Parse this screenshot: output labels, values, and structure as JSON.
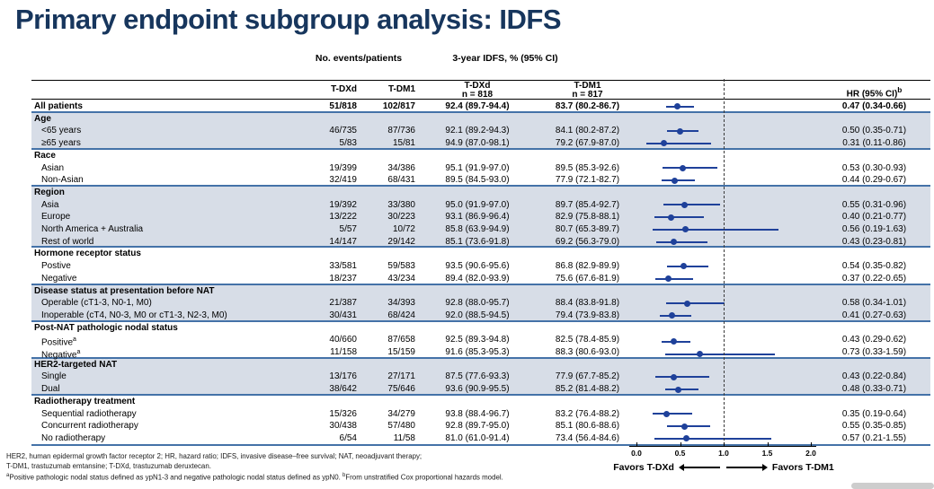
{
  "title": "Primary endpoint subgroup analysis: IDFS",
  "chart_data": {
    "type": "table",
    "subtype": "forest-plot-subgroup-table",
    "group_headers": {
      "events": "No. events/patients",
      "idfs": "3-year IDFS, % (95% CI)"
    },
    "columns": {
      "tdxd_events": "T-DXd",
      "tdm1_events": "T-DM1",
      "tdxd_idfs": [
        "T-DXd",
        "n = 818"
      ],
      "tdm1_idfs": [
        "T-DM1",
        "n = 817"
      ],
      "hr": "HR (95% CI)",
      "hr_sup": "b"
    },
    "forest": {
      "xlim": [
        0,
        2
      ],
      "axis_ticks": [
        0.0,
        0.5,
        1.0,
        1.5,
        2.0
      ],
      "reference_line": 1.0,
      "favors_left": "Favors T-DXd",
      "favors_right": "Favors T-DM1"
    },
    "sections": [
      {
        "header": null,
        "shaded": false,
        "rows": [
          {
            "label": "All patients",
            "bold": true,
            "events_tdxd": "51/818",
            "events_tdm1": "102/817",
            "idfs_tdxd": "92.4 (89.7-94.4)",
            "idfs_tdm1": "83.7 (80.2-86.7)",
            "hr_text": "0.47 (0.34-0.66)",
            "hr": 0.47,
            "lo": 0.34,
            "hi": 0.66
          }
        ]
      },
      {
        "header": "Age",
        "shaded": true,
        "rows": [
          {
            "label": "<65 years",
            "events_tdxd": "46/735",
            "events_tdm1": "87/736",
            "idfs_tdxd": "92.1 (89.2-94.3)",
            "idfs_tdm1": "84.1 (80.2-87.2)",
            "hr_text": "0.50 (0.35-0.71)",
            "hr": 0.5,
            "lo": 0.35,
            "hi": 0.71
          },
          {
            "label": "≥65 years",
            "events_tdxd": "5/83",
            "events_tdm1": "15/81",
            "idfs_tdxd": "94.9 (87.0-98.1)",
            "idfs_tdm1": "79.2 (67.9-87.0)",
            "hr_text": "0.31 (0.11-0.86)",
            "hr": 0.31,
            "lo": 0.11,
            "hi": 0.86
          }
        ]
      },
      {
        "header": "Race",
        "shaded": false,
        "rows": [
          {
            "label": "Asian",
            "events_tdxd": "19/399",
            "events_tdm1": "34/386",
            "idfs_tdxd": "95.1 (91.9-97.0)",
            "idfs_tdm1": "89.5 (85.3-92.6)",
            "hr_text": "0.53 (0.30-0.93)",
            "hr": 0.53,
            "lo": 0.3,
            "hi": 0.93
          },
          {
            "label": "Non-Asian",
            "events_tdxd": "32/419",
            "events_tdm1": "68/431",
            "idfs_tdxd": "89.5 (84.5-93.0)",
            "idfs_tdm1": "77.9 (72.1-82.7)",
            "hr_text": "0.44 (0.29-0.67)",
            "hr": 0.44,
            "lo": 0.29,
            "hi": 0.67
          }
        ]
      },
      {
        "header": "Region",
        "shaded": true,
        "rows": [
          {
            "label": "Asia",
            "events_tdxd": "19/392",
            "events_tdm1": "33/380",
            "idfs_tdxd": "95.0 (91.9-97.0)",
            "idfs_tdm1": "89.7 (85.4-92.7)",
            "hr_text": "0.55 (0.31-0.96)",
            "hr": 0.55,
            "lo": 0.31,
            "hi": 0.96
          },
          {
            "label": "Europe",
            "events_tdxd": "13/222",
            "events_tdm1": "30/223",
            "idfs_tdxd": "93.1 (86.9-96.4)",
            "idfs_tdm1": "82.9 (75.8-88.1)",
            "hr_text": "0.40 (0.21-0.77)",
            "hr": 0.4,
            "lo": 0.21,
            "hi": 0.77
          },
          {
            "label": "North America + Australia",
            "events_tdxd": "5/57",
            "events_tdm1": "10/72",
            "idfs_tdxd": "85.8 (63.9-94.9)",
            "idfs_tdm1": "80.7 (65.3-89.7)",
            "hr_text": "0.56 (0.19-1.63)",
            "hr": 0.56,
            "lo": 0.19,
            "hi": 1.63
          },
          {
            "label": "Rest of world",
            "events_tdxd": "14/147",
            "events_tdm1": "29/142",
            "idfs_tdxd": "85.1 (73.6-91.8)",
            "idfs_tdm1": "69.2 (56.3-79.0)",
            "hr_text": "0.43 (0.23-0.81)",
            "hr": 0.43,
            "lo": 0.23,
            "hi": 0.81
          }
        ]
      },
      {
        "header": "Hormone receptor status",
        "shaded": false,
        "rows": [
          {
            "label": "Postive",
            "events_tdxd": "33/581",
            "events_tdm1": "59/583",
            "idfs_tdxd": "93.5 (90.6-95.6)",
            "idfs_tdm1": "86.8 (82.9-89.9)",
            "hr_text": "0.54 (0.35-0.82)",
            "hr": 0.54,
            "lo": 0.35,
            "hi": 0.82
          },
          {
            "label": "Negative",
            "events_tdxd": "18/237",
            "events_tdm1": "43/234",
            "idfs_tdxd": "89.4 (82.0-93.9)",
            "idfs_tdm1": "75.6 (67.6-81.9)",
            "hr_text": "0.37 (0.22-0.65)",
            "hr": 0.37,
            "lo": 0.22,
            "hi": 0.65
          }
        ]
      },
      {
        "header": "Disease status at presentation before NAT",
        "shaded": true,
        "rows": [
          {
            "label": "Operable (cT1-3, N0-1, M0)",
            "events_tdxd": "21/387",
            "events_tdm1": "34/393",
            "idfs_tdxd": "92.8 (88.0-95.7)",
            "idfs_tdm1": "88.4 (83.8-91.8)",
            "hr_text": "0.58 (0.34-1.01)",
            "hr": 0.58,
            "lo": 0.34,
            "hi": 1.01
          },
          {
            "label": "Inoperable (cT4, N0-3, M0 or cT1-3, N2-3, M0)",
            "events_tdxd": "30/431",
            "events_tdm1": "68/424",
            "idfs_tdxd": "92.0 (88.5-94.5)",
            "idfs_tdm1": "79.4 (73.9-83.8)",
            "hr_text": "0.41 (0.27-0.63)",
            "hr": 0.41,
            "lo": 0.27,
            "hi": 0.63
          }
        ]
      },
      {
        "header": "Post-NAT pathologic nodal status",
        "shaded": false,
        "rows": [
          {
            "label": "Positive",
            "sup": "a",
            "events_tdxd": "40/660",
            "events_tdm1": "87/658",
            "idfs_tdxd": "92.5 (89.3-94.8)",
            "idfs_tdm1": "82.5 (78.4-85.9)",
            "hr_text": "0.43 (0.29-0.62)",
            "hr": 0.43,
            "lo": 0.29,
            "hi": 0.62
          },
          {
            "label": "Negative",
            "sup": "a",
            "events_tdxd": "11/158",
            "events_tdm1": "15/159",
            "idfs_tdxd": "91.6 (85.3-95.3)",
            "idfs_tdm1": "88.3 (80.6-93.0)",
            "hr_text": "0.73 (0.33-1.59)",
            "hr": 0.73,
            "lo": 0.33,
            "hi": 1.59
          }
        ]
      },
      {
        "header": "HER2-targeted NAT",
        "shaded": true,
        "rows": [
          {
            "label": "Single",
            "events_tdxd": "13/176",
            "events_tdm1": "27/171",
            "idfs_tdxd": "87.5 (77.6-93.3)",
            "idfs_tdm1": "77.9 (67.7-85.2)",
            "hr_text": "0.43 (0.22-0.84)",
            "hr": 0.43,
            "lo": 0.22,
            "hi": 0.84
          },
          {
            "label": "Dual",
            "events_tdxd": "38/642",
            "events_tdm1": "75/646",
            "idfs_tdxd": "93.6 (90.9-95.5)",
            "idfs_tdm1": "85.2 (81.4-88.2)",
            "hr_text": "0.48 (0.33-0.71)",
            "hr": 0.48,
            "lo": 0.33,
            "hi": 0.71
          }
        ]
      },
      {
        "header": "Radiotherapy treatment",
        "shaded": false,
        "rows": [
          {
            "label": "Sequential radiotherapy",
            "events_tdxd": "15/326",
            "events_tdm1": "34/279",
            "idfs_tdxd": "93.8 (88.4-96.7)",
            "idfs_tdm1": "83.2 (76.4-88.2)",
            "hr_text": "0.35 (0.19-0.64)",
            "hr": 0.35,
            "lo": 0.19,
            "hi": 0.64
          },
          {
            "label": "Concurrent radiotherapy",
            "events_tdxd": "30/438",
            "events_tdm1": "57/480",
            "idfs_tdxd": "92.8 (89.7-95.0)",
            "idfs_tdm1": "85.1 (80.6-88.6)",
            "hr_text": "0.55 (0.35-0.85)",
            "hr": 0.55,
            "lo": 0.35,
            "hi": 0.85
          },
          {
            "label": "No radiotherapy",
            "events_tdxd": "6/54",
            "events_tdm1": "11/58",
            "idfs_tdxd": "81.0 (61.0-91.4)",
            "idfs_tdm1": "73.4 (56.4-84.6)",
            "hr_text": "0.57 (0.21-1.55)",
            "hr": 0.57,
            "lo": 0.21,
            "hi": 1.55
          }
        ]
      }
    ]
  },
  "footnotes": {
    "line1": "HER2, human epidermal growth factor receptor 2; HR, hazard ratio; IDFS, invasive disease–free survival; NAT, neoadjuvant therapy;",
    "line2": "T-DM1, trastuzumab emtansine; T-DXd, trastuzumab deruxtecan.",
    "line3_segments": [
      {
        "sup": "a",
        "text": "Positive pathologic nodal status defined as ypN1-3 and negative pathologic nodal status defined as ypN0. "
      },
      {
        "sup": "b",
        "text": "From unstratified Cox proportional hazards model."
      }
    ]
  },
  "colors": {
    "title": "#17365d",
    "section_divider": "#4472a8",
    "shaded_row": "#d7dde7",
    "marker": "#1f419a"
  }
}
